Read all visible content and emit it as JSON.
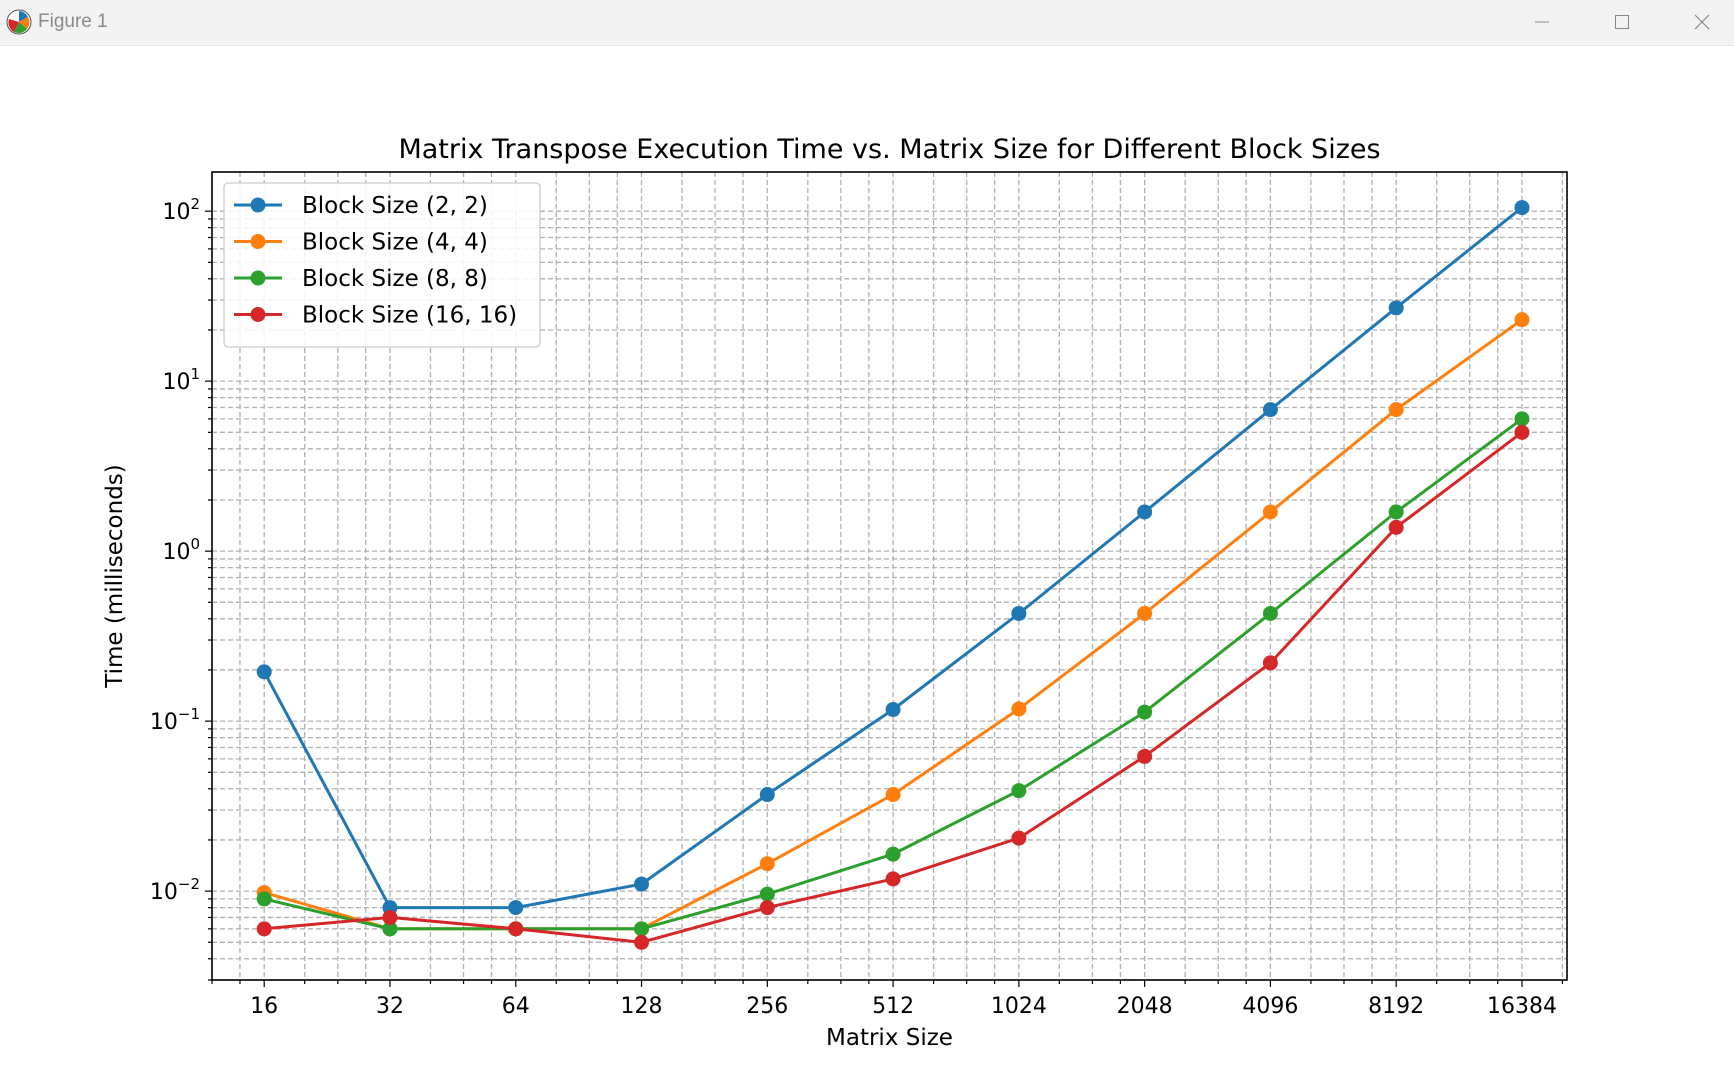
{
  "window": {
    "title": "Figure 1",
    "icons": {
      "app": "matplotlib-logo-icon",
      "minimize": "minimize-icon",
      "maximize": "maximize-icon",
      "close": "close-icon"
    }
  },
  "chart_data": {
    "type": "line",
    "title": "Matrix Transpose Execution Time vs. Matrix Size for Different Block Sizes",
    "xlabel": "Matrix Size",
    "ylabel": "Time (milliseconds)",
    "xscale": "log2",
    "yscale": "log10",
    "x": [
      16,
      32,
      64,
      128,
      256,
      512,
      1024,
      2048,
      4096,
      8192,
      16384
    ],
    "x_tick_labels": [
      "16",
      "32",
      "64",
      "128",
      "256",
      "512",
      "1024",
      "2048",
      "4096",
      "8192",
      "16384"
    ],
    "y_ticks": [
      0.01,
      0.1,
      1,
      10,
      100
    ],
    "y_tick_labels": [
      {
        "base": "10",
        "exp": "−2"
      },
      {
        "base": "10",
        "exp": "−1"
      },
      {
        "base": "10",
        "exp": "0"
      },
      {
        "base": "10",
        "exp": "1"
      },
      {
        "base": "10",
        "exp": "2"
      }
    ],
    "xlim": [
      12,
      21000
    ],
    "ylim": [
      0.003,
      170
    ],
    "grid": "both major and minor, dashed",
    "legend_position": "upper-left",
    "series": [
      {
        "name": "Block Size (2, 2)",
        "color": "#1f77b4",
        "values": [
          0.195,
          0.008,
          0.008,
          0.011,
          0.037,
          0.117,
          0.43,
          1.7,
          6.8,
          27.0,
          105.0
        ]
      },
      {
        "name": "Block Size (4, 4)",
        "color": "#ff7f0e",
        "values": [
          0.0098,
          0.006,
          0.006,
          0.006,
          0.0145,
          0.037,
          0.118,
          0.43,
          1.7,
          6.8,
          23.0
        ]
      },
      {
        "name": "Block Size (8, 8)",
        "color": "#2ca02c",
        "values": [
          0.009,
          0.006,
          0.006,
          0.006,
          0.0096,
          0.0165,
          0.039,
          0.113,
          0.43,
          1.7,
          6.0
        ]
      },
      {
        "name": "Block Size (16, 16)",
        "color": "#d62728",
        "values": [
          0.006,
          0.007,
          0.006,
          0.005,
          0.008,
          0.0118,
          0.0205,
          0.062,
          0.22,
          1.38,
          5.0
        ]
      }
    ]
  }
}
